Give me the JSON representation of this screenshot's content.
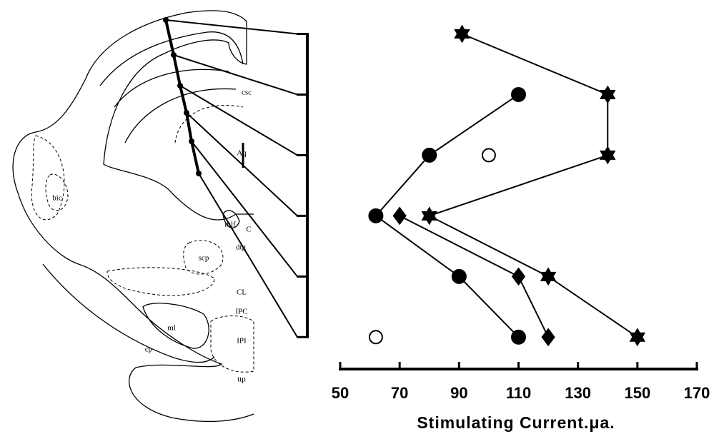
{
  "chart_data": {
    "type": "scatter",
    "xlabel": "Stimulating Current.μa.",
    "xlim": [
      50,
      170
    ],
    "xticks": [
      50,
      70,
      90,
      110,
      130,
      150,
      170
    ],
    "ylim": [
      0.7,
      6.55
    ],
    "y_inverted": true,
    "yticks": [
      1,
      2,
      3,
      4,
      5,
      6
    ],
    "series": [
      {
        "marker": "star",
        "filled": true,
        "connected": true,
        "color": "#000000",
        "x": [
          91,
          140,
          140,
          80,
          120,
          150
        ],
        "values": [
          1,
          2,
          3,
          4,
          5,
          6
        ]
      },
      {
        "marker": "circle",
        "filled": true,
        "connected": true,
        "color": "#000000",
        "x": [
          110,
          80,
          62,
          90,
          110
        ],
        "values": [
          2,
          3,
          4,
          5,
          6
        ]
      },
      {
        "marker": "diamond",
        "filled": true,
        "connected": true,
        "color": "#000000",
        "x": [
          70,
          110,
          120
        ],
        "values": [
          4,
          5,
          6
        ]
      },
      {
        "marker": "circle",
        "filled": false,
        "connected": false,
        "color": "#000000",
        "x": [
          100,
          62
        ],
        "values": [
          3,
          6
        ]
      }
    ]
  },
  "diagram": {
    "labels": [
      "csc",
      "Aq",
      "bic",
      "mlf",
      "C",
      "dtg",
      "scp",
      "CL",
      "ml",
      "IPC",
      "cp",
      "IPI",
      "ttp"
    ]
  }
}
